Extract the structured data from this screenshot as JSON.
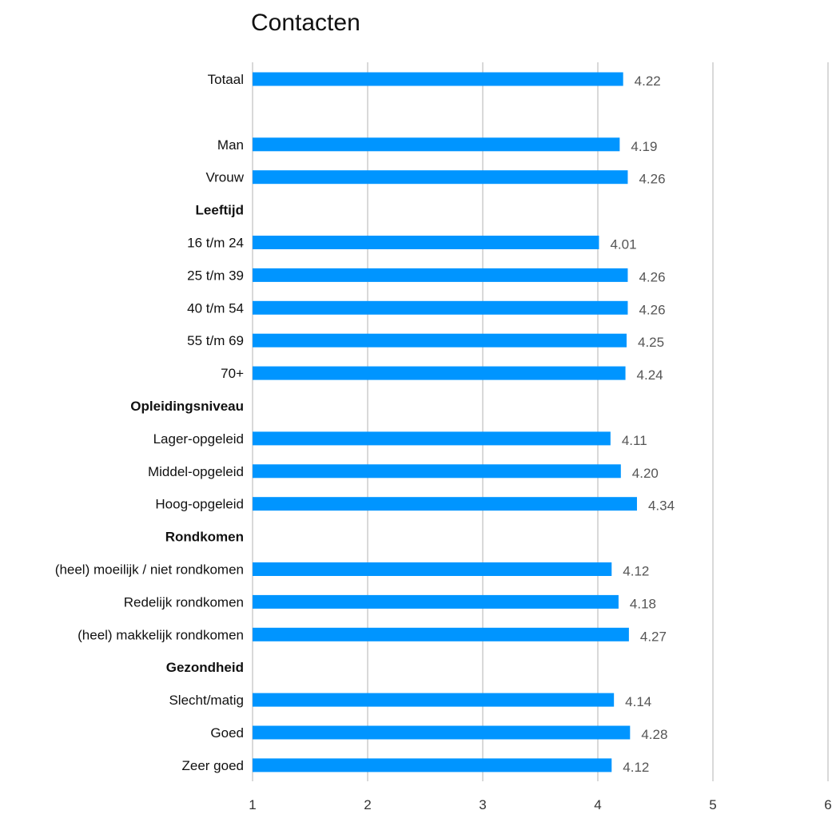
{
  "chart_data": {
    "type": "bar",
    "orientation": "horizontal",
    "title": "Contacten",
    "xlabel": "",
    "ylabel": "",
    "xlim": [
      1,
      6
    ],
    "xticks": [
      "1",
      "2",
      "3",
      "4",
      "5",
      "6"
    ],
    "grid": "vertical",
    "bar_color": "#0095FF",
    "rows": [
      {
        "label": "Totaal",
        "value": 4.22,
        "value_label": "4.22"
      },
      {
        "label": "",
        "value": null,
        "value_label": ""
      },
      {
        "label": "Man",
        "value": 4.19,
        "value_label": "4.19"
      },
      {
        "label": "Vrouw",
        "value": 4.26,
        "value_label": "4.26"
      },
      {
        "label": "Leeftijd",
        "value": null,
        "value_label": "",
        "header": true
      },
      {
        "label": "16 t/m 24",
        "value": 4.01,
        "value_label": "4.01"
      },
      {
        "label": "25 t/m 39",
        "value": 4.26,
        "value_label": "4.26"
      },
      {
        "label": "40 t/m 54",
        "value": 4.26,
        "value_label": "4.26"
      },
      {
        "label": "55 t/m 69",
        "value": 4.25,
        "value_label": "4.25"
      },
      {
        "label": "70+",
        "value": 4.24,
        "value_label": "4.24"
      },
      {
        "label": "Opleidingsniveau",
        "value": null,
        "value_label": "",
        "header": true
      },
      {
        "label": "Lager-opgeleid",
        "value": 4.11,
        "value_label": "4.11"
      },
      {
        "label": "Middel-opgeleid",
        "value": 4.2,
        "value_label": "4.20"
      },
      {
        "label": "Hoog-opgeleid",
        "value": 4.34,
        "value_label": "4.34"
      },
      {
        "label": "Rondkomen",
        "value": null,
        "value_label": "",
        "header": true
      },
      {
        "label": "(heel) moeilijk / niet rondkomen",
        "value": 4.12,
        "value_label": "4.12"
      },
      {
        "label": "Redelijk rondkomen",
        "value": 4.18,
        "value_label": "4.18"
      },
      {
        "label": "(heel) makkelijk rondkomen",
        "value": 4.27,
        "value_label": "4.27"
      },
      {
        "label": "Gezondheid",
        "value": null,
        "value_label": "",
        "header": true
      },
      {
        "label": "Slecht/matig",
        "value": 4.14,
        "value_label": "4.14"
      },
      {
        "label": "Goed",
        "value": 4.28,
        "value_label": "4.28"
      },
      {
        "label": "Zeer goed",
        "value": 4.12,
        "value_label": "4.12"
      }
    ]
  }
}
